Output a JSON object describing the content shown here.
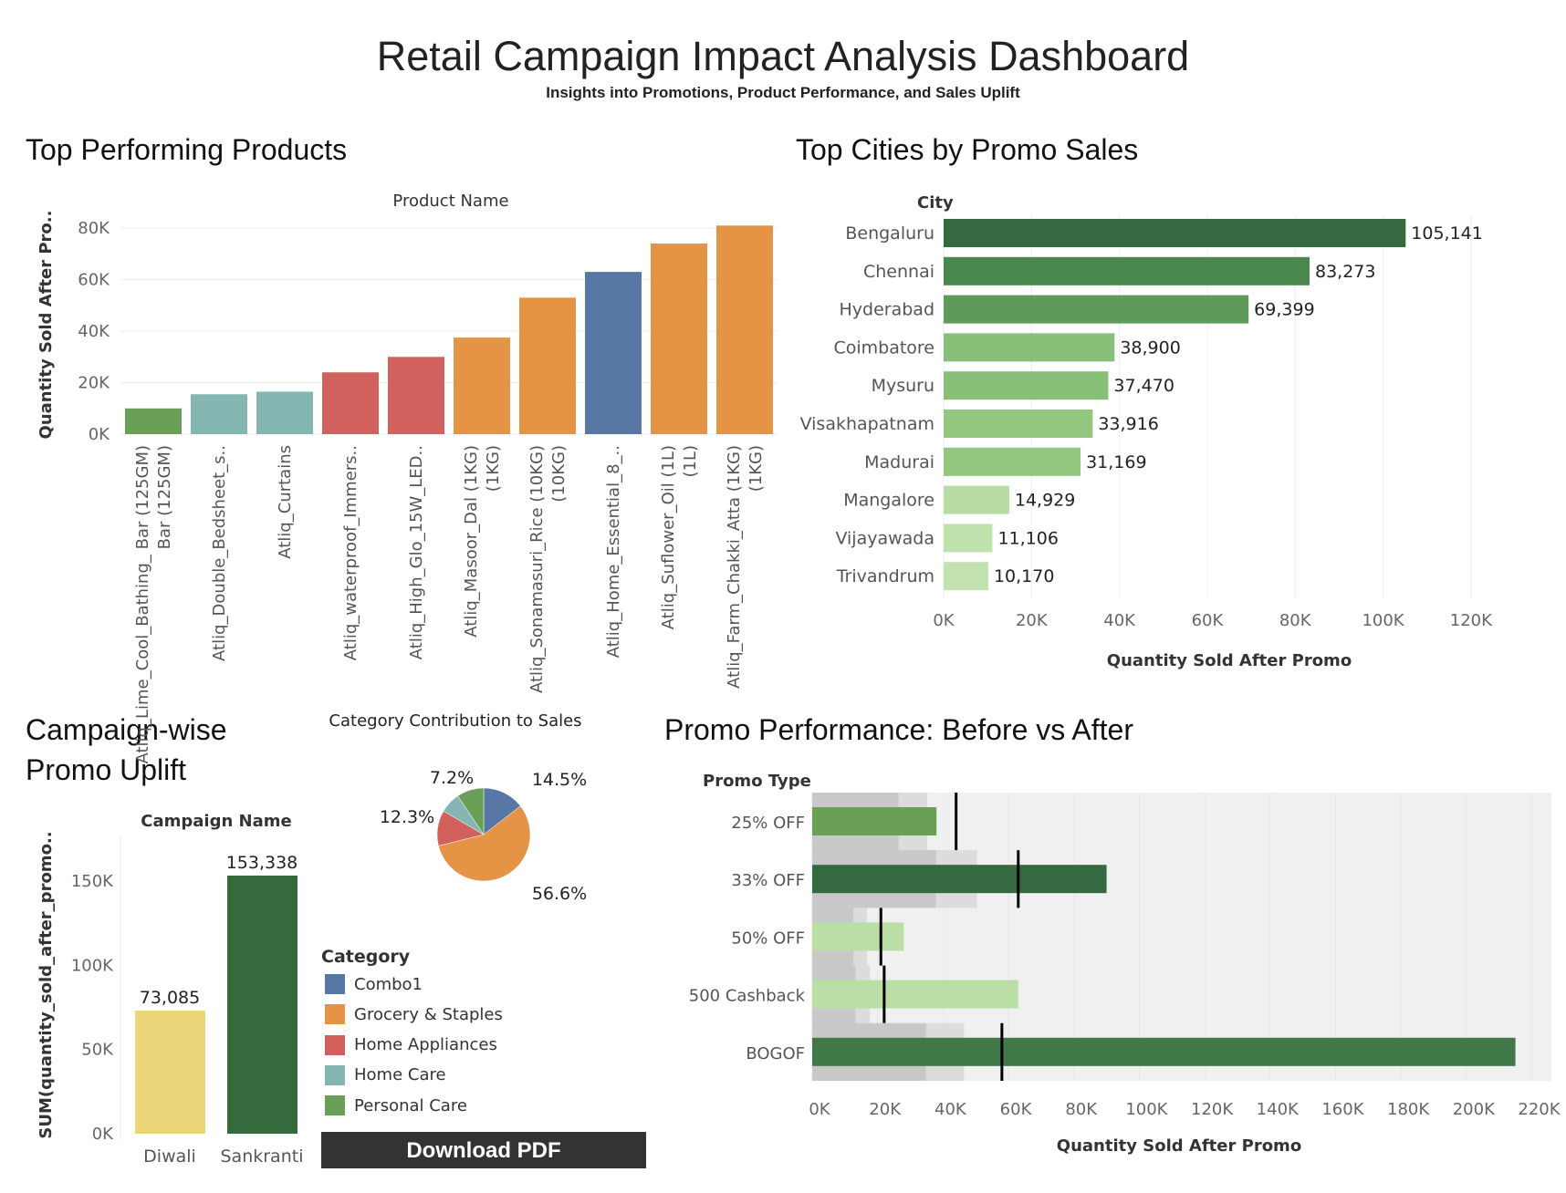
{
  "header": {
    "title": "Retail Campaign Impact Analysis Dashboard",
    "subtitle": "Insights into Promotions, Product Performance, and Sales Uplift"
  },
  "sections": {
    "products": "Top Performing Products",
    "cities": "Top Cities by Promo Sales",
    "campaign": [
      "Campaign-wise",
      "Promo Uplift"
    ],
    "promo": "Promo Performance: Before vs After"
  },
  "legend": {
    "title": "Category",
    "items": [
      {
        "label": "Combo1",
        "color": "#5778a4"
      },
      {
        "label": "Grocery & Staples",
        "color": "#e49444"
      },
      {
        "label": "Home Appliances",
        "color": "#d1615d"
      },
      {
        "label": "Home Care",
        "color": "#85b6b2"
      },
      {
        "label": "Personal Care",
        "color": "#6a9f58"
      }
    ]
  },
  "download_label": "Download PDF",
  "chart_data": [
    {
      "type": "bar",
      "id": "products",
      "xlabel": "Product Name",
      "ylabel": "Quantity Sold After Pro..",
      "ylim": [
        0,
        85000
      ],
      "yticks": [
        "0K",
        "20K",
        "40K",
        "60K",
        "80K"
      ],
      "grid": true,
      "categories": [
        "Atliq_Lime_Cool_Bathing_ Bar (125GM)",
        "Atliq_Double_Bedsheet_s..",
        "Atliq_Curtains",
        "Atliq_waterproof_Immers..",
        "Atliq_High_Glo_15W_LED..",
        "Atliq_Masoor_Dal (1KG)",
        "Atliq_Sonamasuri_Rice (10KG)",
        "Atliq_Home_Essential_8_..",
        "Atliq_Suflower_Oil (1L)",
        "Atliq_Farm_Chakki_Atta (1KG)"
      ],
      "values": [
        10000,
        15500,
        16500,
        24000,
        30000,
        37500,
        53000,
        63000,
        74000,
        81000
      ],
      "category_of_bar": [
        "Personal Care",
        "Home Care",
        "Home Care",
        "Home Appliances",
        "Home Appliances",
        "Grocery & Staples",
        "Grocery & Staples",
        "Combo1",
        "Grocery & Staples",
        "Grocery & Staples"
      ]
    },
    {
      "type": "bar",
      "id": "cities",
      "orientation": "horizontal",
      "ylabel": "City",
      "xlabel": "Quantity Sold After Promo",
      "xlim": [
        0,
        130000
      ],
      "xticks": [
        "0K",
        "20K",
        "40K",
        "60K",
        "80K",
        "100K",
        "120K"
      ],
      "categories": [
        "Bengaluru",
        "Chennai",
        "Hyderabad",
        "Coimbatore",
        "Mysuru",
        "Visakhapatnam",
        "Madurai",
        "Mangalore",
        "Vijayawada",
        "Trivandrum"
      ],
      "values": [
        105141,
        83273,
        69399,
        38900,
        37470,
        33916,
        31169,
        14929,
        11106,
        10170
      ],
      "labels": [
        "105,141",
        "83,273",
        "69,399",
        "38,900",
        "37,470",
        "33,916",
        "31,169",
        "14,929",
        "11,106",
        "10,170"
      ],
      "colors": [
        "#356a41",
        "#4a874d",
        "#5f9a5a",
        "#89c079",
        "#89c079",
        "#93c67e",
        "#93c67e",
        "#b7dda4",
        "#bfe1ac",
        "#c1e2ae"
      ]
    },
    {
      "type": "bar",
      "id": "campaign",
      "xlabel": "Campaign Name",
      "ylabel": "SUM(quantity_sold_after_promo..",
      "ylim": [
        0,
        175000
      ],
      "yticks": [
        "0K",
        "50K",
        "100K",
        "150K"
      ],
      "categories": [
        "Diwali",
        "Sankranti"
      ],
      "values": [
        73085,
        153338
      ],
      "labels": [
        "73,085",
        "153,338"
      ],
      "colors": [
        "#ecd478",
        "#346a3c"
      ]
    },
    {
      "type": "pie",
      "id": "category",
      "title": "Category Contribution to Sales",
      "slices": [
        {
          "label": "Combo1",
          "value": 14.5,
          "text": "14.5%"
        },
        {
          "label": "Grocery & Staples",
          "value": 56.6,
          "text": "56.6%"
        },
        {
          "label": "Home Appliances",
          "value": 12.3,
          "text": "12.3%"
        },
        {
          "label": "Home Care",
          "value": 7.2,
          "text": "7.2%"
        },
        {
          "label": "Personal Care",
          "value": 9.4,
          "text": ""
        }
      ]
    },
    {
      "type": "bar",
      "id": "promo",
      "subtype": "bullet",
      "ylabel": "Promo Type",
      "xlabel": "Quantity Sold After Promo",
      "xlim": [
        0,
        226000
      ],
      "xticks": [
        "0K",
        "20K",
        "40K",
        "60K",
        "80K",
        "100K",
        "120K",
        "140K",
        "160K",
        "180K",
        "200K",
        "220K"
      ],
      "categories": [
        "25% OFF",
        "33% OFF",
        "50% OFF",
        "500 Cashback",
        "BOGOF"
      ],
      "after": [
        38000,
        90000,
        28000,
        63000,
        215000
      ],
      "before": [
        44000,
        63000,
        21000,
        22000,
        58000
      ],
      "colors": [
        "#6a9f58",
        "#356a41",
        "#bbdea6",
        "#bbdea6",
        "#407848"
      ]
    }
  ]
}
